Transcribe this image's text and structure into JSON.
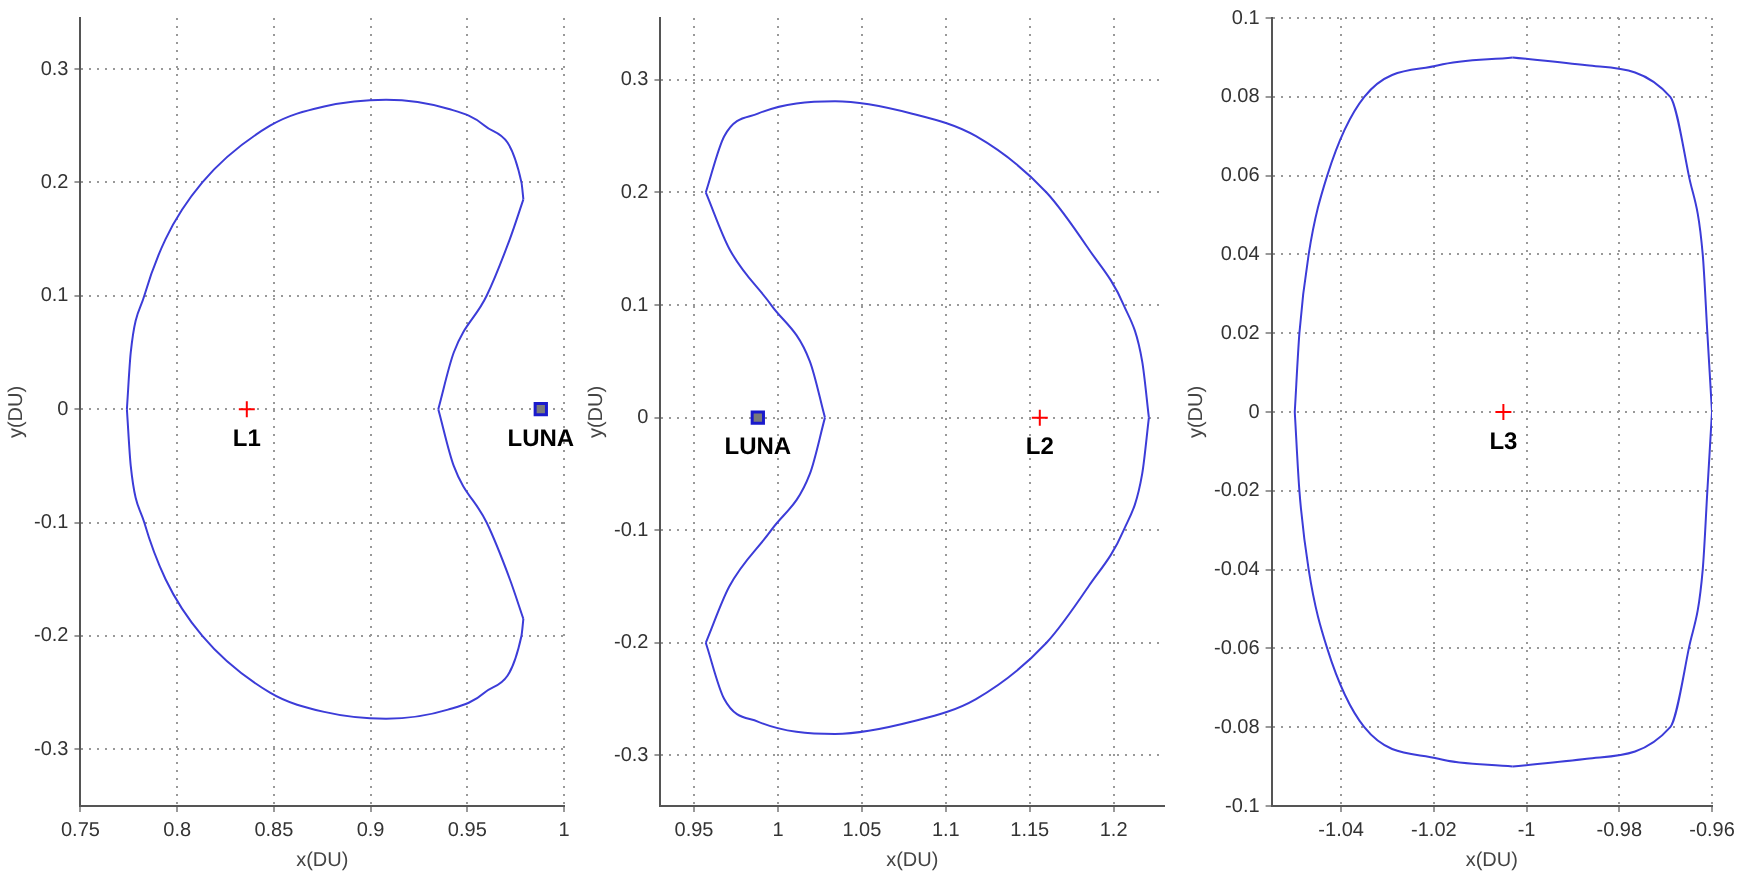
{
  "chart_data": [
    {
      "type": "line",
      "xlabel": "x(DU)",
      "ylabel": "y(DU)",
      "grid": true,
      "xlim": [
        0.75,
        1.0
      ],
      "ylim": [
        -0.35,
        0.345
      ],
      "xticks": [
        0.75,
        0.8,
        0.85,
        0.9,
        0.95,
        1
      ],
      "yticks": [
        -0.3,
        -0.2,
        -0.1,
        0,
        0.1,
        0.2,
        0.3
      ],
      "annotations": [
        {
          "text": "L1",
          "x": 0.836,
          "y": 0
        },
        {
          "text": "LUNA",
          "x": 0.988,
          "y": 0
        }
      ],
      "series": [
        {
          "type": "line",
          "color": "#3c3cd8",
          "marker": "none",
          "x": [
            0.774,
            0.776,
            0.783,
            0.794,
            0.813,
            0.848,
            0.876,
            0.908,
            0.94,
            0.959,
            0.978,
            0.979
          ],
          "values": [
            0,
            0.05,
            0.1,
            0.15,
            0.2,
            0.25,
            0.267,
            0.273,
            0.265,
            0.25,
            0.2,
            0.185
          ]
        },
        {
          "type": "line",
          "color": "#3c3cd8",
          "marker": "none",
          "x": [
            0.935,
            0.943,
            0.96,
            0.972,
            0.979
          ],
          "values": [
            0,
            0.05,
            0.1,
            0.15,
            0.185
          ]
        },
        {
          "type": "line",
          "color": "#3c3cd8",
          "marker": "none",
          "x": [
            0.774,
            0.776,
            0.783,
            0.794,
            0.813,
            0.848,
            0.876,
            0.908,
            0.94,
            0.959,
            0.978,
            0.979
          ],
          "values": [
            0,
            -0.05,
            -0.1,
            -0.15,
            -0.2,
            -0.25,
            -0.267,
            -0.273,
            -0.265,
            -0.25,
            -0.2,
            -0.185
          ]
        },
        {
          "type": "line",
          "color": "#3c3cd8",
          "marker": "none",
          "x": [
            0.935,
            0.943,
            0.96,
            0.972,
            0.979
          ],
          "values": [
            0,
            -0.05,
            -0.1,
            -0.15,
            -0.185
          ]
        },
        {
          "type": "scatter",
          "color": "#ff0000",
          "marker": "cross",
          "x": [
            0.836
          ],
          "values": [
            0
          ]
        },
        {
          "type": "scatter",
          "color": "#1a1acc",
          "marker": "square",
          "x": [
            0.988
          ],
          "values": [
            0
          ]
        }
      ]
    },
    {
      "type": "line",
      "xlabel": "x(DU)",
      "ylabel": "y(DU)",
      "grid": true,
      "xlim": [
        0.93,
        1.23
      ],
      "ylim": [
        -0.345,
        0.355
      ],
      "xticks": [
        0.95,
        1,
        1.05,
        1.1,
        1.15,
        1.2
      ],
      "yticks": [
        -0.3,
        -0.2,
        -0.1,
        0,
        0.1,
        0.2,
        0.3
      ],
      "annotations": [
        {
          "text": "LUNA",
          "x": 0.988,
          "y": 0
        },
        {
          "text": "L2",
          "x": 1.156,
          "y": 0
        }
      ],
      "series": [
        {
          "type": "line",
          "color": "#3c3cd8",
          "marker": "none",
          "x": [
            0.957,
            0.971,
            0.996,
            1.019,
            1.028
          ],
          "values": [
            0.2,
            0.15,
            0.1,
            0.05,
            0
          ]
        },
        {
          "type": "line",
          "color": "#3c3cd8",
          "marker": "none",
          "x": [
            0.957,
            0.968,
            0.988,
            1.034,
            1.08,
            1.118,
            1.16,
            1.185,
            1.206,
            1.217,
            1.221
          ],
          "values": [
            0.2,
            0.25,
            0.27,
            0.281,
            0.27,
            0.25,
            0.2,
            0.15,
            0.1,
            0.05,
            0
          ]
        },
        {
          "type": "line",
          "color": "#3c3cd8",
          "marker": "none",
          "x": [
            0.957,
            0.971,
            0.996,
            1.019,
            1.028
          ],
          "values": [
            -0.2,
            -0.15,
            -0.1,
            -0.05,
            0
          ]
        },
        {
          "type": "line",
          "color": "#3c3cd8",
          "marker": "none",
          "x": [
            0.957,
            0.968,
            0.988,
            1.034,
            1.08,
            1.118,
            1.16,
            1.185,
            1.206,
            1.217,
            1.221
          ],
          "values": [
            -0.2,
            -0.25,
            -0.27,
            -0.281,
            -0.27,
            -0.25,
            -0.2,
            -0.15,
            -0.1,
            -0.05,
            0
          ]
        },
        {
          "type": "scatter",
          "color": "#ff0000",
          "marker": "cross",
          "x": [
            1.156
          ],
          "values": [
            0
          ]
        },
        {
          "type": "scatter",
          "color": "#1a1acc",
          "marker": "square",
          "x": [
            0.988
          ],
          "values": [
            0
          ]
        }
      ]
    },
    {
      "type": "line",
      "xlabel": "x(DU)",
      "ylabel": "y(DU)",
      "grid": true,
      "xlim": [
        -1.055,
        -0.96
      ],
      "ylim": [
        -0.1,
        0.1
      ],
      "xticks": [
        -1.04,
        -1.02,
        -1,
        -0.98,
        -0.96
      ],
      "yticks": [
        -0.1,
        -0.08,
        -0.06,
        -0.04,
        -0.02,
        0,
        0.02,
        0.04,
        0.06,
        0.08,
        0.1
      ],
      "annotations": [
        {
          "text": "L3",
          "x": -1.005,
          "y": 0
        }
      ],
      "series": [
        {
          "type": "line",
          "color": "#3c3cd8",
          "marker": "none",
          "x": [
            -1.05,
            -1.049,
            -1.047,
            -1.043,
            -1.035,
            -1.019,
            -1.003
          ],
          "values": [
            0,
            0.02,
            0.04,
            0.06,
            0.08,
            0.088,
            0.09
          ]
        },
        {
          "type": "line",
          "color": "#3c3cd8",
          "marker": "none",
          "x": [
            -1.003,
            -0.987,
            -0.969,
            -0.965,
            -0.962,
            -0.961,
            -0.96
          ],
          "values": [
            0.09,
            0.088,
            0.08,
            0.06,
            0.04,
            0.02,
            0
          ]
        },
        {
          "type": "line",
          "color": "#3c3cd8",
          "marker": "none",
          "x": [
            -1.05,
            -1.049,
            -1.047,
            -1.043,
            -1.035,
            -1.019,
            -1.003
          ],
          "values": [
            0,
            -0.02,
            -0.04,
            -0.06,
            -0.08,
            -0.088,
            -0.09
          ]
        },
        {
          "type": "line",
          "color": "#3c3cd8",
          "marker": "none",
          "x": [
            -1.003,
            -0.987,
            -0.969,
            -0.965,
            -0.962,
            -0.961,
            -0.96
          ],
          "values": [
            -0.09,
            -0.088,
            -0.08,
            -0.06,
            -0.04,
            -0.02,
            0
          ]
        },
        {
          "type": "scatter",
          "color": "#ff0000",
          "marker": "cross",
          "x": [
            -1.005
          ],
          "values": [
            0
          ]
        }
      ]
    }
  ]
}
